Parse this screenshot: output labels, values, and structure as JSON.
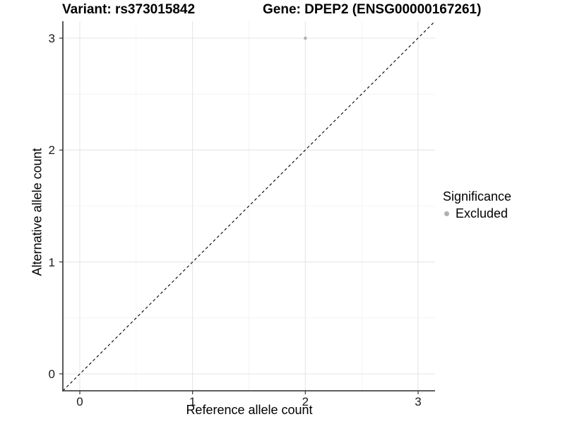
{
  "header": {
    "variant_title": "Variant: rs373015842",
    "gene_title": "Gene: DPEP2 (ENSG00000167261)"
  },
  "axes": {
    "x_label": "Reference allele count",
    "y_label": "Alternative allele count"
  },
  "legend": {
    "title": "Significance",
    "items": [
      {
        "label": "Excluded",
        "color": "#b0b0b0"
      }
    ]
  },
  "chart_data": {
    "type": "scatter",
    "title": "Variant: rs373015842    Gene: DPEP2 (ENSG00000167261)",
    "xlabel": "Reference allele count",
    "ylabel": "Alternative allele count",
    "xlim": [
      -0.15,
      3.15
    ],
    "ylim": [
      -0.15,
      3.15
    ],
    "x_ticks": [
      0,
      1,
      2,
      3
    ],
    "y_ticks": [
      0,
      1,
      2,
      3
    ],
    "minor_ticks": [
      0.5,
      1.5,
      2.5
    ],
    "grid": "major-and-minor",
    "legend_position": "right",
    "series": [
      {
        "name": "Excluded",
        "color": "#b0b0b0",
        "points": [
          {
            "x": 2,
            "y": 3
          }
        ]
      }
    ],
    "reference_line": {
      "equation": "y = x",
      "style": "dashed",
      "color": "#000000",
      "from": [
        -0.15,
        -0.15
      ],
      "to": [
        3.15,
        3.15
      ]
    },
    "colors": {
      "background": "#ffffff",
      "grid_major": "#e5e5e5",
      "grid_minor": "#f2f2f2",
      "axis_line": "#474747",
      "tick_mark": "#333333",
      "point": "#b0b0b0"
    }
  }
}
